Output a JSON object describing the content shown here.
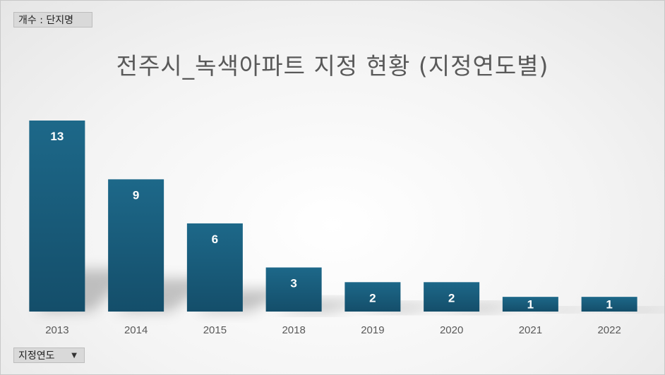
{
  "value_field_button": "개수 : 단지명",
  "axis_field_button": "지정연도",
  "chart_data": {
    "type": "bar",
    "title": "전주시_녹색아파트 지정 현황 (지정연도별)",
    "categories": [
      "2013",
      "2014",
      "2015",
      "2018",
      "2019",
      "2020",
      "2021",
      "2022"
    ],
    "values": [
      13,
      9,
      6,
      3,
      2,
      2,
      1,
      1
    ],
    "xlabel": "",
    "ylabel": "",
    "ylim": [
      0,
      13
    ],
    "grid": false,
    "data_labels": true,
    "colors": {
      "bar_top": "#1d6889",
      "bar_bottom": "#144e6a",
      "label": "#ffffff",
      "tick": "#595959"
    }
  }
}
